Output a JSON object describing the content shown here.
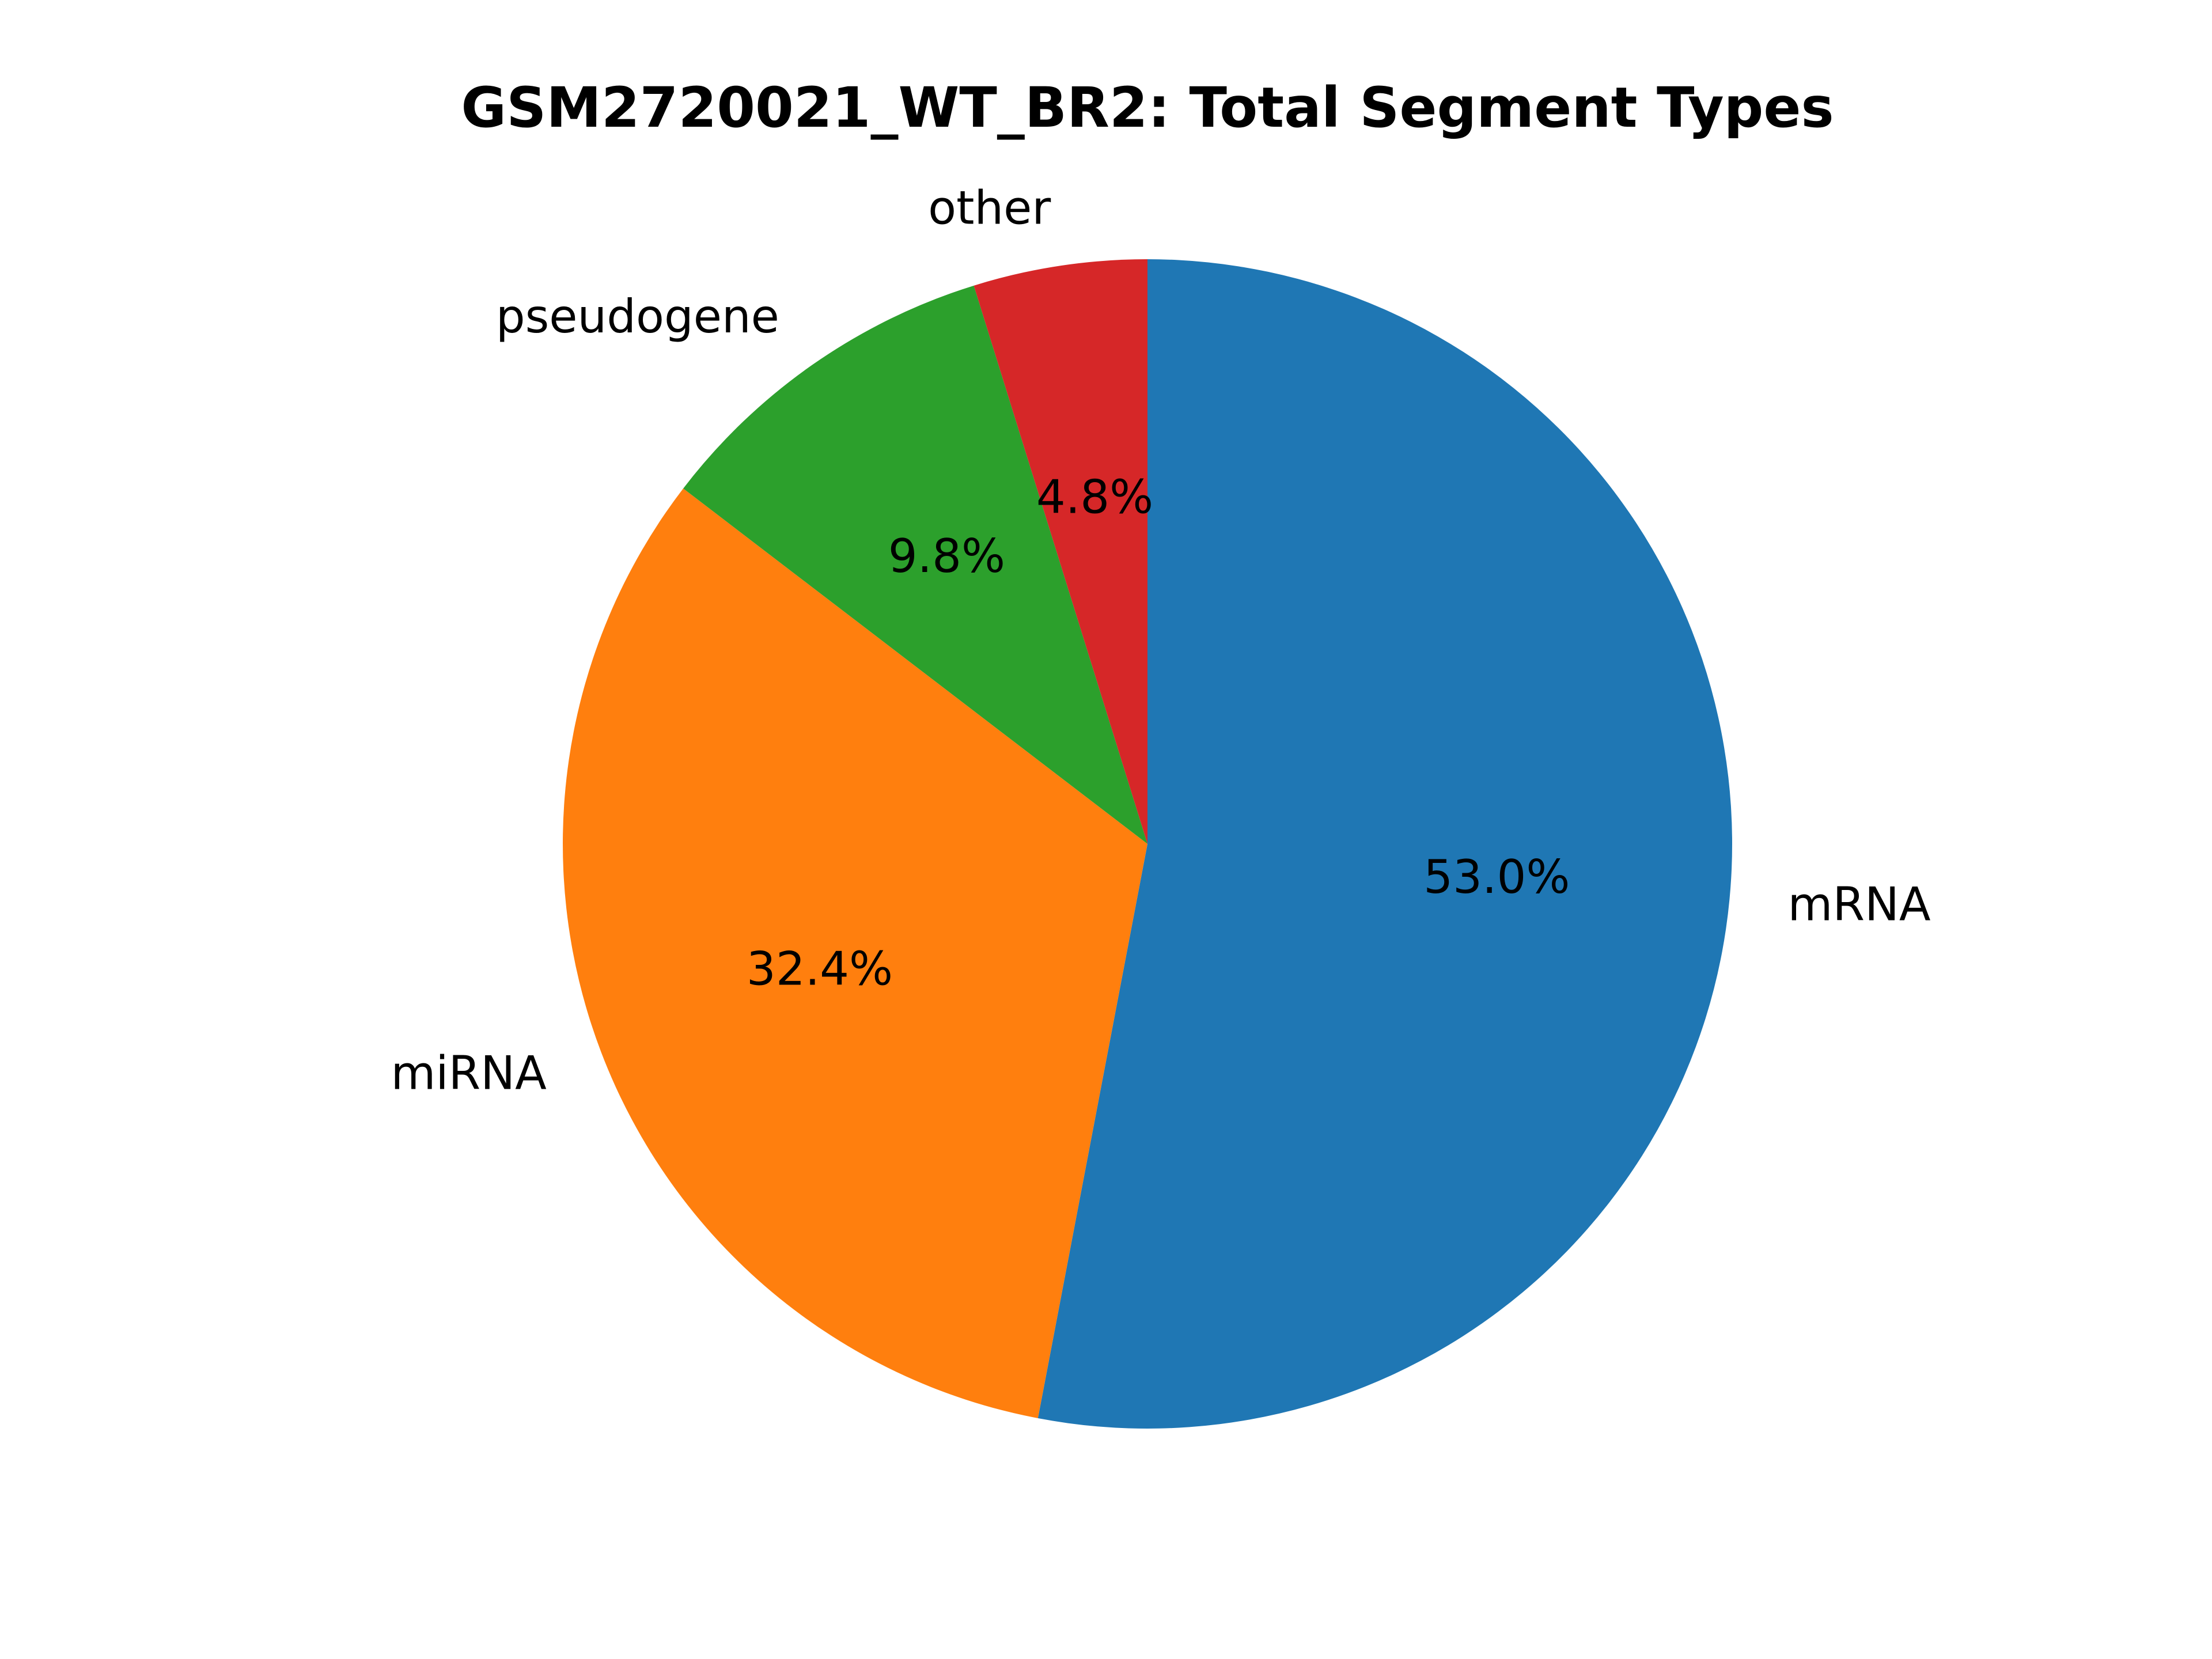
{
  "chart_data": {
    "type": "pie",
    "title": "GSM2720021_WT_BR2: Total Segment Types",
    "start_angle_deg": 90,
    "direction": "clockwise",
    "slices": [
      {
        "label": "mRNA",
        "value": 53.0,
        "pct_label": "53.0%",
        "color": "#1f77b4"
      },
      {
        "label": "miRNA",
        "value": 32.4,
        "pct_label": "32.4%",
        "color": "#ff7f0e"
      },
      {
        "label": "pseudogene",
        "value": 9.8,
        "pct_label": "9.8%",
        "color": "#2ca02c"
      },
      {
        "label": "other",
        "value": 4.8,
        "pct_label": "4.8%",
        "color": "#d62728"
      }
    ]
  }
}
